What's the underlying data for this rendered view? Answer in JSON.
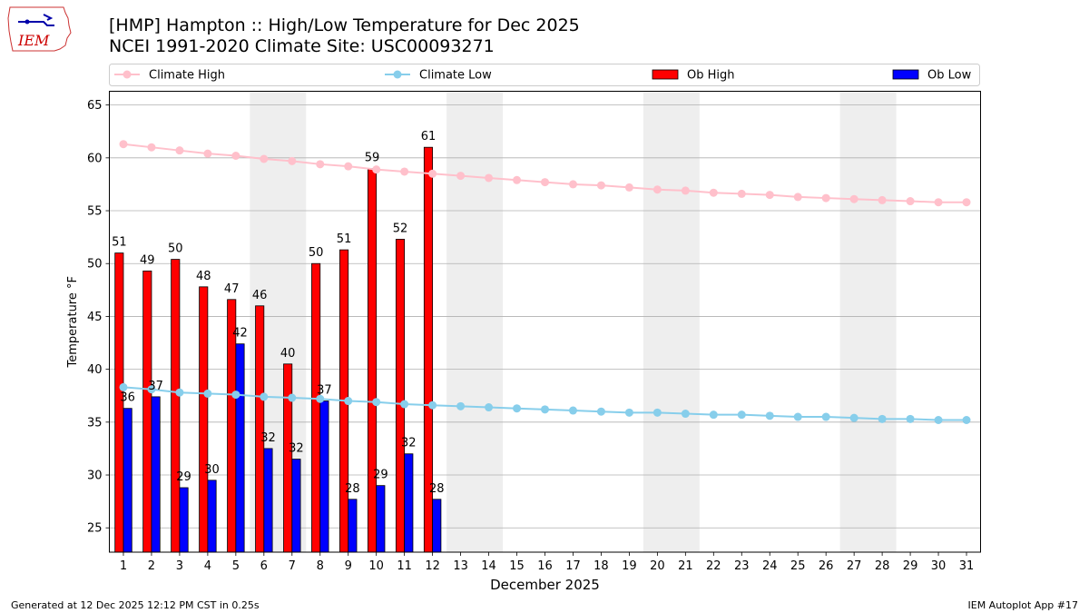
{
  "header": {
    "title_line1": "[HMP] Hampton :: High/Low Temperature for Dec 2025",
    "title_line2": "NCEI 1991-2020 Climate Site: USC00093271",
    "logo_text": "IEM"
  },
  "footer": {
    "generated": "Generated at 12 Dec 2025 12:12 PM CST in 0.25s",
    "app": "IEM Autoplot App #17"
  },
  "colors": {
    "climate_high": "#ffc0cb",
    "climate_low": "#87ceeb",
    "ob_high": "#ff0000",
    "ob_low": "#0000ff",
    "weekend_shade": "#eeeeee",
    "grid": "#b0b0b0"
  },
  "chart_data": {
    "type": "bar",
    "xlabel": "December 2025",
    "ylabel": "Temperature °F",
    "xlim": [
      0.5,
      31.5
    ],
    "ylim": [
      22.7,
      66.3
    ],
    "yticks": [
      25,
      30,
      35,
      40,
      45,
      50,
      55,
      60,
      65
    ],
    "days": [
      1,
      2,
      3,
      4,
      5,
      6,
      7,
      8,
      9,
      10,
      11,
      12,
      13,
      14,
      15,
      16,
      17,
      18,
      19,
      20,
      21,
      22,
      23,
      24,
      25,
      26,
      27,
      28,
      29,
      30,
      31
    ],
    "weekend_bands": [
      [
        5.5,
        7.5
      ],
      [
        12.5,
        14.5
      ],
      [
        19.5,
        21.5
      ],
      [
        26.5,
        28.5
      ]
    ],
    "legend": [
      "Climate High",
      "Climate Low",
      "Ob High",
      "Ob Low"
    ],
    "series": [
      {
        "name": "Climate High",
        "kind": "line",
        "values": [
          61.3,
          61.0,
          60.7,
          60.4,
          60.2,
          59.9,
          59.7,
          59.4,
          59.2,
          58.9,
          58.7,
          58.5,
          58.3,
          58.1,
          57.9,
          57.7,
          57.5,
          57.4,
          57.2,
          57.0,
          56.9,
          56.7,
          56.6,
          56.5,
          56.3,
          56.2,
          56.1,
          56.0,
          55.9,
          55.8,
          55.8
        ]
      },
      {
        "name": "Climate Low",
        "kind": "line",
        "values": [
          38.3,
          38.1,
          37.8,
          37.7,
          37.6,
          37.4,
          37.3,
          37.2,
          37.0,
          36.9,
          36.7,
          36.6,
          36.5,
          36.4,
          36.3,
          36.2,
          36.1,
          36.0,
          35.9,
          35.9,
          35.8,
          35.7,
          35.7,
          35.6,
          35.5,
          35.5,
          35.4,
          35.3,
          35.3,
          35.2,
          35.2
        ]
      },
      {
        "name": "Ob High",
        "kind": "bar",
        "values": [
          51,
          49.3,
          50.4,
          47.8,
          46.6,
          46,
          40.5,
          50,
          51.3,
          59,
          52.3,
          61
        ],
        "labels": [
          "51",
          "49",
          "50",
          "48",
          "47",
          "46",
          "40",
          "50",
          "51",
          "59",
          "52",
          "61"
        ]
      },
      {
        "name": "Ob Low",
        "kind": "bar",
        "values": [
          36.3,
          37.4,
          28.8,
          29.5,
          42.4,
          32.5,
          31.5,
          37,
          27.7,
          29,
          32,
          27.7
        ],
        "labels": [
          "36",
          "37",
          "29",
          "30",
          "42",
          "32",
          "32",
          "37",
          "28",
          "29",
          "32",
          "28"
        ]
      }
    ]
  }
}
